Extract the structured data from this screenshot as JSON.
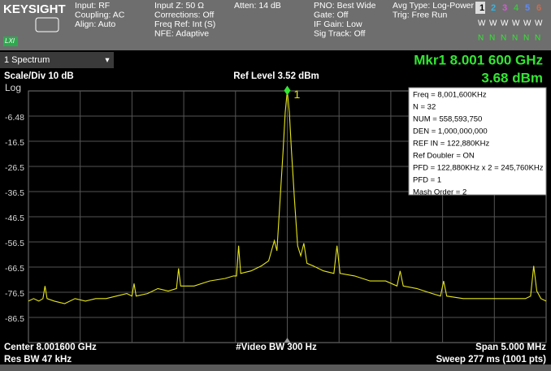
{
  "header": {
    "brand": "KEYSIGHT",
    "lxi": "LXI",
    "input": [
      "Input: RF",
      "Coupling: AC",
      "Align: Auto"
    ],
    "setup": [
      "Input Z: 50 Ω",
      "Corrections: Off",
      "Freq Ref: Int (S)",
      "NFE: Adaptive"
    ],
    "atten": "Atten: 14 dB",
    "sweep_setup": [
      "PNO: Best Wide",
      "Gate: Off",
      "IF Gain: Low",
      "Sig Track: Off"
    ],
    "averaging": [
      "Avg Type: Log-Power",
      "Trig: Free Run"
    ],
    "trace_numbers": [
      "1",
      "2",
      "3",
      "4",
      "5",
      "6"
    ],
    "trace_modes": [
      "W",
      "W",
      "W",
      "W",
      "W",
      "W"
    ],
    "detectors": [
      "N",
      "N",
      "N",
      "N",
      "N",
      "N"
    ]
  },
  "window": "1 Spectrum",
  "marker": {
    "label": "Mkr1  8.001 600 GHz",
    "value": "3.68 dBm",
    "number": "1"
  },
  "notes": [
    "Freq = 8,001,600KHz",
    "N = 32",
    "NUM =  558,593,750",
    "DEN = 1,000,000,000",
    "REF IN = 122,880KHz",
    "Ref Doubler = ON",
    "PFD = 122,880KHz x 2 = 245,760KHz",
    "PFD = 1",
    "Mash Order = 2"
  ],
  "chart_data": {
    "type": "line",
    "color": "#e6e619",
    "scale_label": "Scale/Div 10 dB",
    "ref_label": "Ref Level 3.52 dBm",
    "scale_type": "Log",
    "center_label": "Center 8.001600 GHz",
    "span_label": "Span 5.000 MHz",
    "res_bw_label": "Res BW 47 kHz",
    "video_bw_label": "#Video BW 300 Hz",
    "sweep_label": "Sweep 277 ms (1001 pts)",
    "xlim": [
      7999.1,
      8004.1
    ],
    "ylim": [
      -96.48,
      3.52
    ],
    "yticks": [
      -6.48,
      {
        "value": -16.48,
        "label": "-16.5"
      },
      {
        "value": -26.48,
        "label": "-26.5"
      },
      {
        "value": -36.48,
        "label": "-36.5"
      },
      {
        "value": -46.48,
        "label": "-46.5"
      },
      {
        "value": -56.48,
        "label": "-56.5"
      },
      {
        "value": -66.48,
        "label": "-66.5"
      },
      {
        "value": -76.48,
        "label": "-76.5"
      },
      {
        "value": -86.48,
        "label": "-86.5"
      }
    ],
    "marker_x": 8001.6,
    "marker_y": 3.68,
    "x": [
      7999.1,
      7999.15,
      7999.2,
      7999.24,
      7999.26,
      7999.28,
      7999.35,
      7999.45,
      7999.55,
      7999.65,
      7999.75,
      7999.85,
      7999.95,
      8000.05,
      8000.1,
      8000.12,
      8000.14,
      8000.25,
      8000.35,
      8000.45,
      8000.53,
      8000.55,
      8000.57,
      8000.7,
      8000.85,
      8001.0,
      8001.08,
      8001.11,
      8001.13,
      8001.15,
      8001.25,
      8001.35,
      8001.42,
      8001.475,
      8001.5,
      8001.53,
      8001.56,
      8001.58,
      8001.6,
      8001.62,
      8001.64,
      8001.67,
      8001.7,
      8001.73,
      8001.76,
      8001.79,
      8001.85,
      8001.95,
      8002.05,
      8002.08,
      8002.11,
      8002.25,
      8002.4,
      8002.55,
      8002.66,
      8002.69,
      8002.72,
      8002.85,
      8003.0,
      8003.08,
      8003.11,
      8003.14,
      8003.3,
      8003.5,
      8003.7,
      8003.9,
      8003.95,
      8003.98,
      8004.01,
      8004.05,
      8004.1
    ],
    "values": [
      -80,
      -79,
      -80,
      -79,
      -74,
      -79,
      -80,
      -81,
      -79,
      -80,
      -79,
      -79,
      -78,
      -77,
      -78,
      -73,
      -78,
      -77,
      -75,
      -76,
      -75,
      -67,
      -74,
      -74,
      -72,
      -71,
      -70,
      -70,
      -58,
      -69,
      -68,
      -66,
      -64,
      -56,
      -60,
      -40,
      -20,
      -5,
      3.68,
      -5,
      -20,
      -40,
      -58,
      -62,
      -57,
      -65,
      -66,
      -68,
      -69,
      -58,
      -69,
      -70,
      -72,
      -72,
      -74,
      -68,
      -74,
      -75,
      -77,
      -78,
      -72,
      -78,
      -79,
      -79,
      -79,
      -79,
      -78,
      -66,
      -76,
      -79,
      -80
    ]
  }
}
